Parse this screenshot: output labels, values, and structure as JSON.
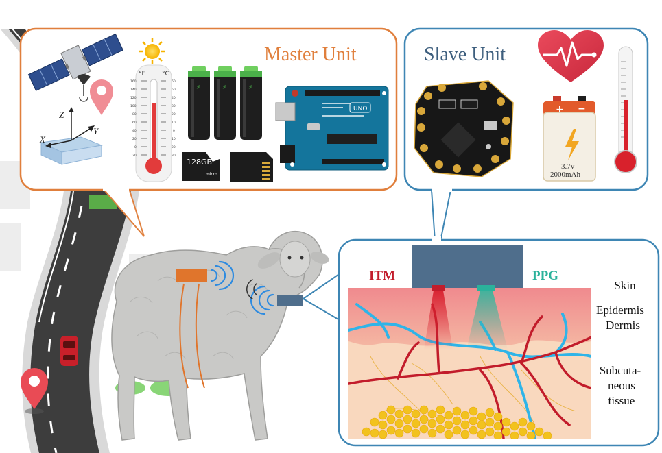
{
  "master_unit": {
    "title": "Master Unit",
    "thermometer_units": [
      "°F",
      "°C"
    ],
    "thermometer_f_ticks": [
      "160",
      "140",
      "120",
      "100",
      "80",
      "60",
      "40",
      "20",
      "0",
      "20"
    ],
    "thermometer_c_ticks": [
      "60",
      "50",
      "40",
      "30",
      "20",
      "10",
      "0",
      "10",
      "20",
      "30"
    ],
    "sd_card_label": "128GB",
    "sd_card_sublabel": "micro",
    "axes": {
      "x": "X",
      "y": "Y",
      "z": "Z"
    },
    "board_label": "UNO"
  },
  "slave_unit": {
    "title": "Slave Unit",
    "battery_voltage": "3.7v",
    "battery_capacity": "2000mAh",
    "battery_plus": "+",
    "battery_minus": "−"
  },
  "skin_panel": {
    "itm_label": "ITM",
    "ppg_label": "PPG",
    "layers": [
      "Skin",
      "Epidermis",
      "Dermis",
      "Subcuta-",
      "neous",
      "tissue"
    ]
  },
  "colors": {
    "master_border": "#E07F3C",
    "master_title": "#E07F3C",
    "slave_border": "#3E86B4",
    "slave_title": "#3E5F7E",
    "itm": "#C21C2B",
    "ppg": "#2BB29B",
    "sensor_block": "#4F6E8C",
    "road": "#3D3D3D",
    "sheep": "#C9C9C7"
  }
}
